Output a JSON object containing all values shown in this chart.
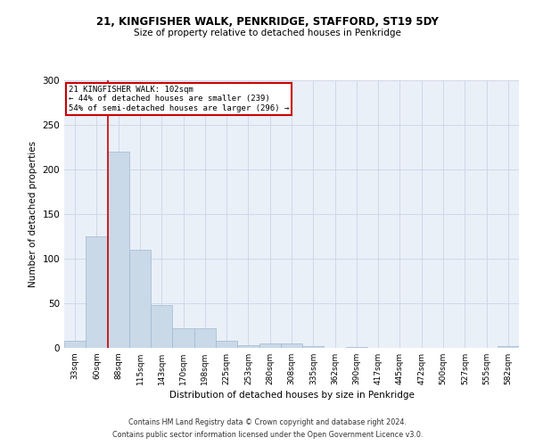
{
  "title_line1": "21, KINGFISHER WALK, PENKRIDGE, STAFFORD, ST19 5DY",
  "title_line2": "Size of property relative to detached houses in Penkridge",
  "xlabel": "Distribution of detached houses by size in Penkridge",
  "ylabel": "Number of detached properties",
  "bar_labels": [
    "33sqm",
    "60sqm",
    "88sqm",
    "115sqm",
    "143sqm",
    "170sqm",
    "198sqm",
    "225sqm",
    "253sqm",
    "280sqm",
    "308sqm",
    "335sqm",
    "362sqm",
    "390sqm",
    "417sqm",
    "445sqm",
    "472sqm",
    "500sqm",
    "527sqm",
    "555sqm",
    "582sqm"
  ],
  "bar_values": [
    8,
    125,
    220,
    110,
    48,
    22,
    22,
    8,
    3,
    5,
    5,
    2,
    0,
    1,
    0,
    0,
    0,
    0,
    0,
    0,
    2
  ],
  "bar_color": "#c9d9e8",
  "bar_edge_color": "#a0b8d0",
  "vline_index": 2,
  "annotation_line1": "21 KINGFISHER WALK: 102sqm",
  "annotation_line2": "← 44% of detached houses are smaller (239)",
  "annotation_line3": "54% of semi-detached houses are larger (296) →",
  "annotation_box_color": "#ffffff",
  "annotation_box_edge": "#cc0000",
  "vline_color": "#cc0000",
  "grid_color": "#d0d8e8",
  "background_color": "#eaf0f8",
  "ylim": [
    0,
    300
  ],
  "yticks": [
    0,
    50,
    100,
    150,
    200,
    250,
    300
  ],
  "footer_line1": "Contains HM Land Registry data © Crown copyright and database right 2024.",
  "footer_line2": "Contains public sector information licensed under the Open Government Licence v3.0."
}
